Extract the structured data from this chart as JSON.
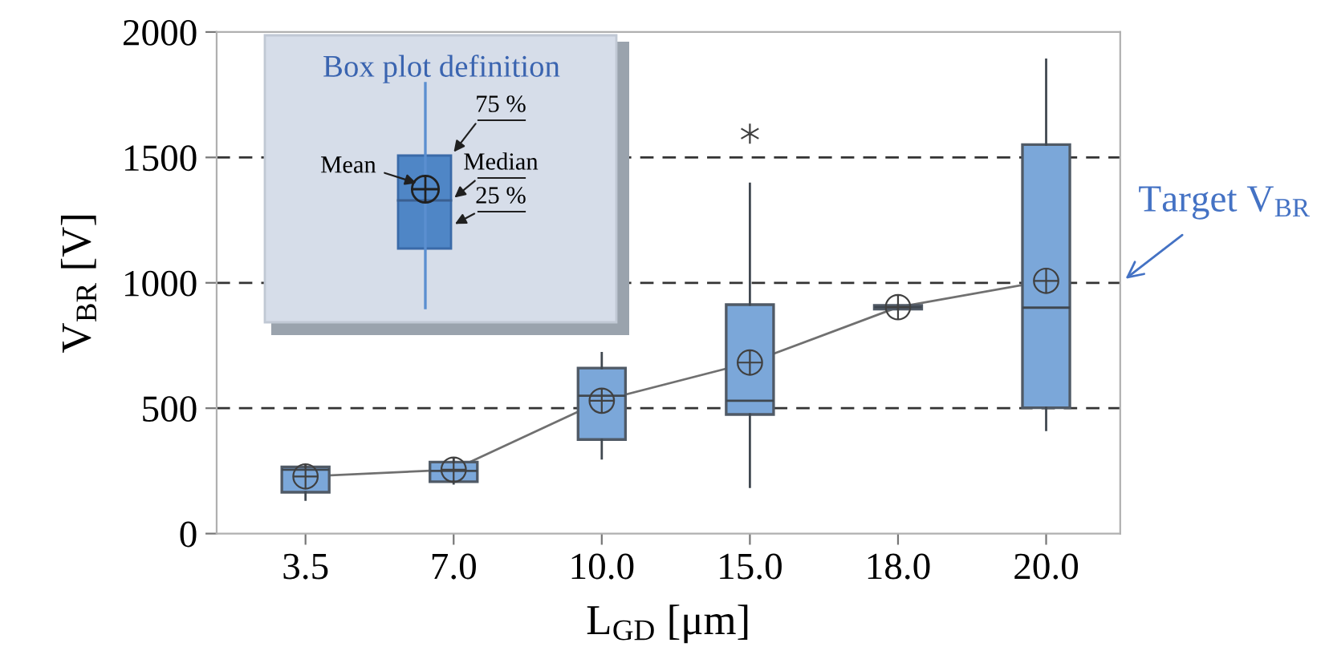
{
  "chart_data": {
    "type": "box",
    "xlabel": "L$_{GD}$ [μm]",
    "ylabel": "V$_{BR}$ [V]",
    "categories": [
      "3.5",
      "7.0",
      "10.0",
      "15.0",
      "18.0",
      "20.0"
    ],
    "color": "#7ba7d9",
    "boxes": [
      {
        "low": 135,
        "q1": 165,
        "median": 255,
        "q3": 266,
        "high": 272,
        "mean": 228
      },
      {
        "low": 200,
        "q1": 207,
        "median": 250,
        "q3": 285,
        "high": 295,
        "mean": 255
      },
      {
        "low": 300,
        "q1": 375,
        "median": 550,
        "q3": 660,
        "high": 720,
        "mean": 530
      },
      {
        "low": 186,
        "q1": 475,
        "median": 530,
        "q3": 913,
        "high": 1395,
        "mean": 682,
        "outliers": [
          1595
        ]
      },
      {
        "low": 895,
        "q1": 895,
        "median": 903,
        "q3": 910,
        "high": 910,
        "mean": 903
      },
      {
        "low": 413,
        "q1": 502,
        "median": 901,
        "q3": 1551,
        "high": 1890,
        "mean": 1008
      }
    ],
    "series": [
      {
        "type": "line",
        "color": "#707070",
        "values": [
          228,
          255,
          530,
          682,
          903,
          1008
        ]
      }
    ],
    "marker": "none",
    "ylim": [
      0,
      2000
    ],
    "yticks": [
      0,
      500,
      1000,
      1500,
      2000
    ],
    "ref_lines": [
      {
        "axis": "y",
        "value": 500,
        "color": "#333333",
        "line_style": "dashed"
      },
      {
        "axis": "y",
        "value": 1000,
        "color": "#333333",
        "line_style": "dashed",
        "label": "Target V$_{BR}$"
      },
      {
        "axis": "y",
        "value": 1500,
        "color": "#333333",
        "line_style": "dashed"
      }
    ],
    "grid": false,
    "annotations": [
      "Box plot definition",
      "75 %",
      "Median",
      "25 %",
      "Mean"
    ]
  }
}
